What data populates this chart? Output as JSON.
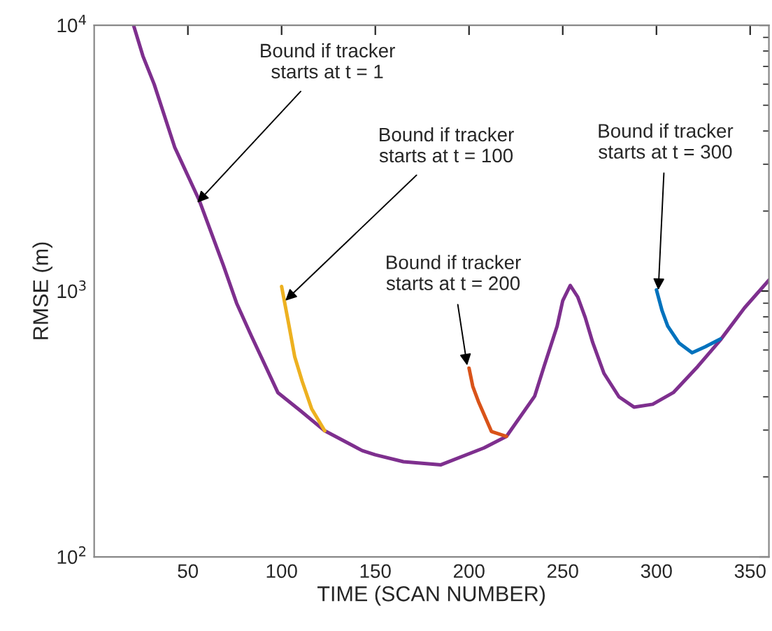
{
  "chart_data": {
    "type": "line",
    "xlabel": "TIME (SCAN NUMBER)",
    "ylabel": "RMSE (m)",
    "log": "y",
    "xlim": [
      0,
      360
    ],
    "xticks": [
      50,
      100,
      150,
      200,
      250,
      300,
      350
    ],
    "ylim": [
      100,
      10000
    ],
    "yticks": [
      {
        "value": 100,
        "label": "10$^{2}$"
      },
      {
        "value": 1000,
        "label": "10$^{3}$"
      },
      {
        "value": 10000,
        "label": "10$^{4}$"
      }
    ],
    "grid": false,
    "legend": false,
    "series": [
      {
        "color": "#7e2f8e",
        "x": [
          21,
          26,
          32,
          43,
          56,
          69,
          76,
          84,
          98,
          110,
          123,
          143,
          150,
          165,
          185,
          208,
          220,
          235,
          240,
          247,
          250,
          254,
          258,
          262,
          266,
          272,
          280,
          288,
          298,
          309,
          322,
          334,
          347,
          360
        ],
        "values": [
          10000,
          7660,
          6000,
          3470,
          2200,
          1245,
          900,
          675,
          415,
          355,
          298,
          251,
          242,
          228,
          222,
          257,
          284,
          402,
          520,
          738,
          920,
          1050,
          950,
          795,
          640,
          490,
          400,
          366,
          375,
          415,
          520,
          653,
          865,
          1100
        ]
      },
      {
        "color": "#edb120",
        "x": [
          100,
          104,
          107,
          111,
          116,
          123
        ],
        "values": [
          1040,
          738,
          566,
          457,
          361,
          298
        ]
      },
      {
        "color": "#d95319",
        "x": [
          200,
          202,
          205,
          212,
          216,
          220
        ],
        "values": [
          513,
          438,
          384,
          296,
          290,
          284
        ]
      },
      {
        "color": "#0072bd",
        "x": [
          300,
          303,
          306,
          312,
          319,
          326,
          334
        ],
        "values": [
          1010,
          843,
          738,
          638,
          586,
          617,
          660
        ]
      }
    ],
    "annotations": [
      {
        "text": "Bound if tracker\nstarts at t = 1",
        "x": 55,
        "y": 2150
      },
      {
        "text": "Bound if tracker\nstarts at t = 100",
        "x": 102,
        "y": 920
      },
      {
        "text": "Bound if tracker\nstarts at t = 200",
        "x": 199,
        "y": 525
      },
      {
        "text": "Bound if tracker\nstarts at t = 300",
        "x": 301,
        "y": 1010
      }
    ]
  }
}
